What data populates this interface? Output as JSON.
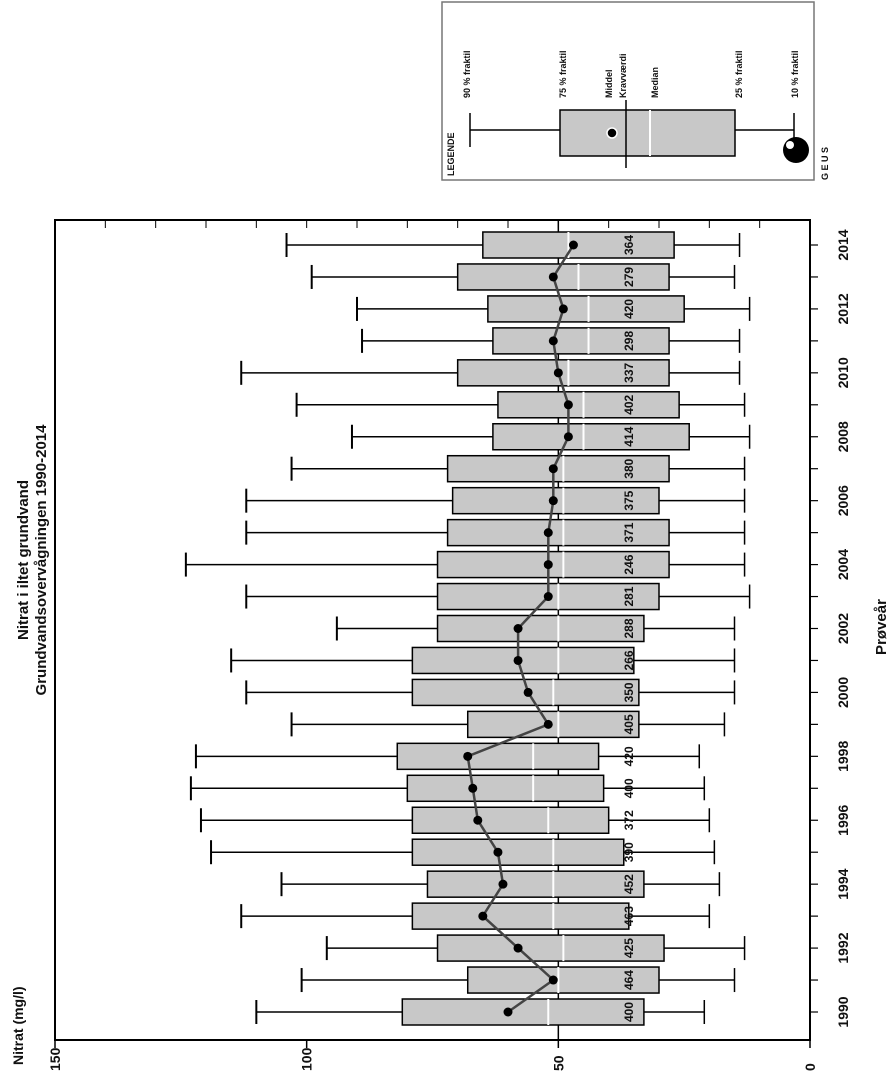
{
  "chart_data": {
    "type": "boxplot",
    "title": "Nitrat i iltet grundvand",
    "subtitle": "Grundvandsovervågningen 1990-2014",
    "ylabel": "Nitrat (mg/l)",
    "xlabel": "Prøveår",
    "ylim": [
      0,
      150
    ],
    "y_ticks": [
      "0",
      "50",
      "100",
      "150"
    ],
    "x_ticks": [
      "1990",
      "1992",
      "1994",
      "1996",
      "1998",
      "2000",
      "2002",
      "2004",
      "2006",
      "2008",
      "2010",
      "2012",
      "2014"
    ],
    "reference_line": 50,
    "orientation": "rotated-90-clockwise",
    "grid": false,
    "box_color": "#c8c8c8",
    "years": [
      1990,
      1991,
      1992,
      1993,
      1994,
      1995,
      1996,
      1997,
      1998,
      1999,
      2000,
      2001,
      2002,
      2003,
      2004,
      2005,
      2006,
      2007,
      2008,
      2009,
      2010,
      2011,
      2012,
      2013,
      2014
    ],
    "p10": [
      21,
      15,
      13,
      20,
      18,
      19,
      20,
      21,
      22,
      17,
      15,
      15,
      15,
      12,
      13,
      13,
      13,
      13,
      12,
      13,
      14,
      14,
      12,
      15,
      14
    ],
    "p25": [
      33,
      30,
      29,
      36,
      33,
      37,
      40,
      41,
      42,
      34,
      34,
      35,
      33,
      30,
      28,
      28,
      30,
      28,
      24,
      26,
      28,
      28,
      25,
      28,
      27
    ],
    "median": [
      52,
      50,
      49,
      51,
      51,
      51,
      52,
      55,
      55,
      50,
      51,
      50,
      50,
      50,
      49,
      49,
      49,
      49,
      45,
      45,
      48,
      44,
      44,
      46,
      48
    ],
    "p75": [
      81,
      68,
      74,
      79,
      76,
      79,
      79,
      80,
      82,
      68,
      79,
      79,
      74,
      74,
      74,
      72,
      71,
      72,
      63,
      62,
      70,
      63,
      64,
      70,
      65
    ],
    "p90": [
      110,
      101,
      96,
      113,
      105,
      119,
      121,
      123,
      122,
      103,
      112,
      115,
      94,
      112,
      124,
      112,
      112,
      103,
      91,
      102,
      113,
      89,
      90,
      99,
      104
    ],
    "mean": [
      60,
      51,
      58,
      65,
      61,
      62,
      66,
      67,
      68,
      52,
      56,
      58,
      58,
      52,
      52,
      52,
      51,
      51,
      48,
      48,
      50,
      51,
      49,
      51,
      47
    ],
    "n_labels": [
      "400",
      "464",
      "425",
      "463",
      "452",
      "390",
      "372",
      "400",
      "420",
      "405",
      "350",
      "266",
      "288",
      "281",
      "246",
      "371",
      "375",
      "380",
      "414",
      "402",
      "337",
      "298",
      "420",
      "279",
      "364"
    ],
    "n_values": [
      400,
      464,
      425,
      463,
      452,
      390,
      372,
      400,
      420,
      405,
      350,
      266,
      288,
      281,
      246,
      371,
      375,
      380,
      414,
      402,
      337,
      298,
      420,
      279,
      364
    ]
  },
  "legend": {
    "title": "LEGENDE",
    "labels": {
      "p90": "90 % fraktil",
      "p75": "75 % fraktil",
      "mean": "Middel",
      "ref": "Kravværdi",
      "median": "Median",
      "p25": "25 % fraktil",
      "p10": "10 % fraktil"
    }
  },
  "logo": {
    "text": "G E U S"
  }
}
